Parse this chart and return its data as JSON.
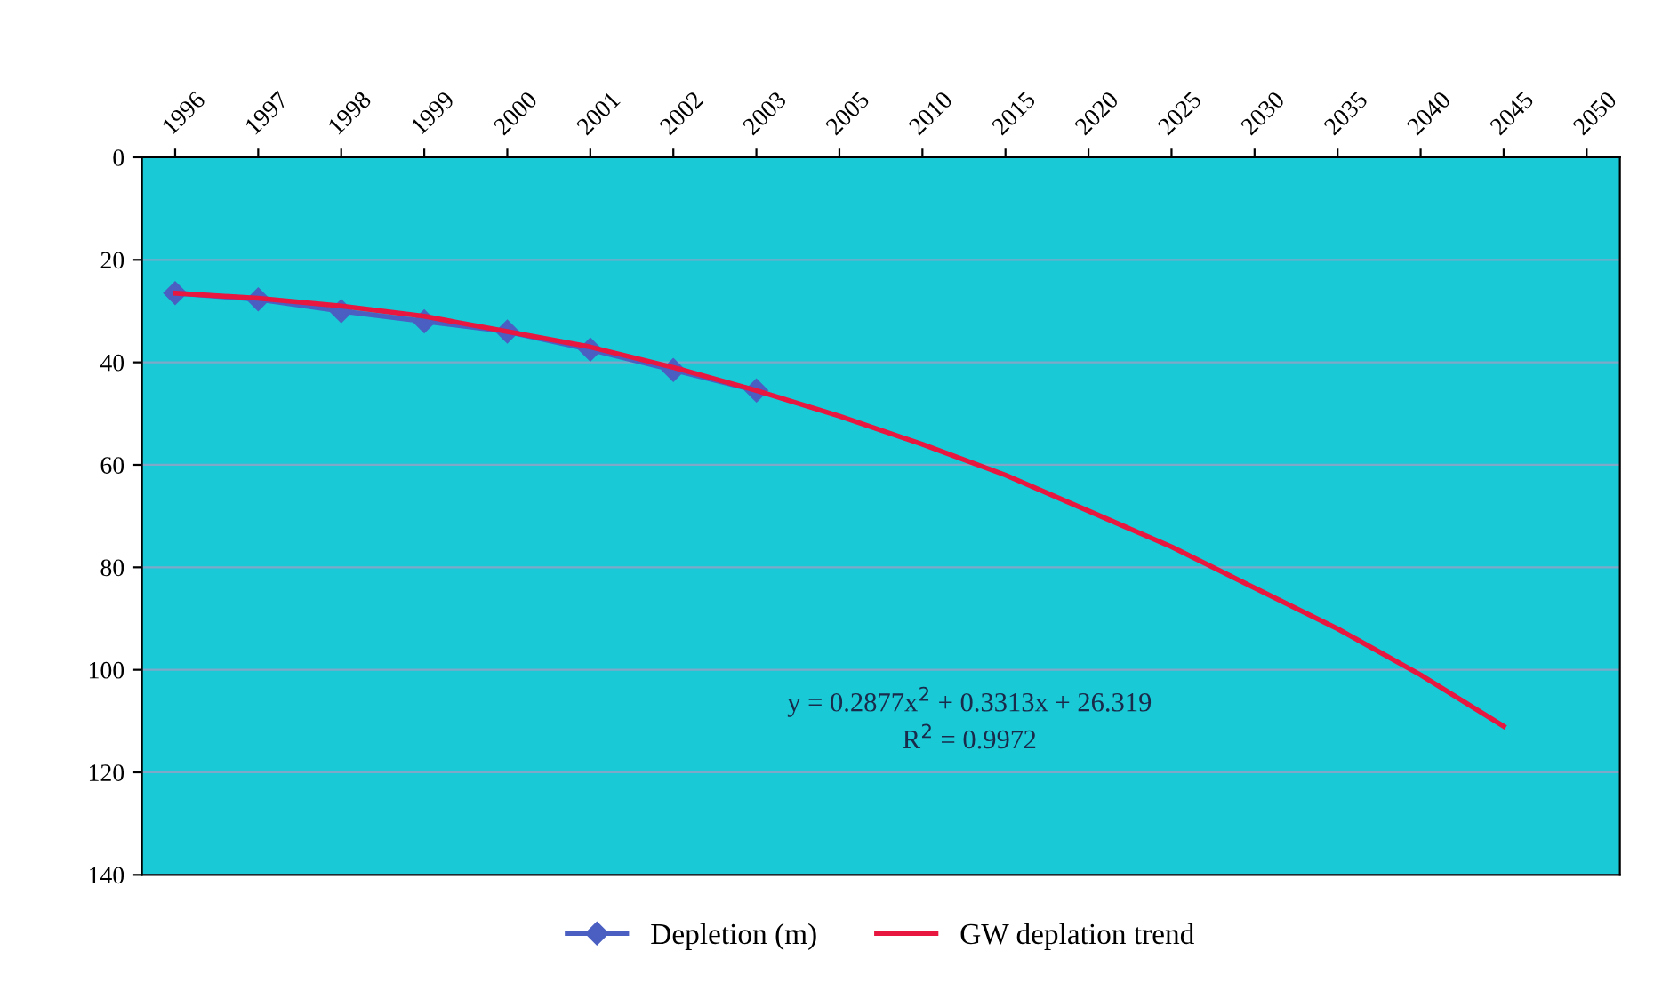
{
  "chart_data": {
    "type": "line",
    "categories": [
      "1996",
      "1997",
      "1998",
      "1999",
      "2000",
      "2001",
      "2002",
      "2003",
      "2005",
      "2010",
      "2015",
      "2020",
      "2025",
      "2030",
      "2035",
      "2040",
      "2045",
      "2050"
    ],
    "series": [
      {
        "name": "Depletion (m)",
        "color": "#4a5fc1",
        "marker": "diamond",
        "values": [
          26.5,
          27.7,
          30,
          32,
          34,
          37.5,
          41.5,
          45.5,
          null,
          null,
          null,
          null,
          null,
          null,
          null,
          null,
          null,
          null
        ]
      },
      {
        "name": "GW deplation trend",
        "color": "#e8173f",
        "marker": "none",
        "values": [
          26.5,
          27.5,
          29,
          31,
          34,
          37,
          41,
          45.5,
          50.5,
          56,
          62,
          69,
          76,
          84,
          92,
          101,
          111,
          null
        ]
      }
    ],
    "ylim": [
      140,
      0
    ],
    "yticks": [
      0,
      20,
      40,
      60,
      80,
      100,
      120,
      140
    ],
    "grid": "y",
    "legend": "bottom",
    "annotations": [
      "y = 0.2877x$^{2}$ + 0.3313x + 26.319\nR$^{2}$ = 0.9972"
    ]
  }
}
